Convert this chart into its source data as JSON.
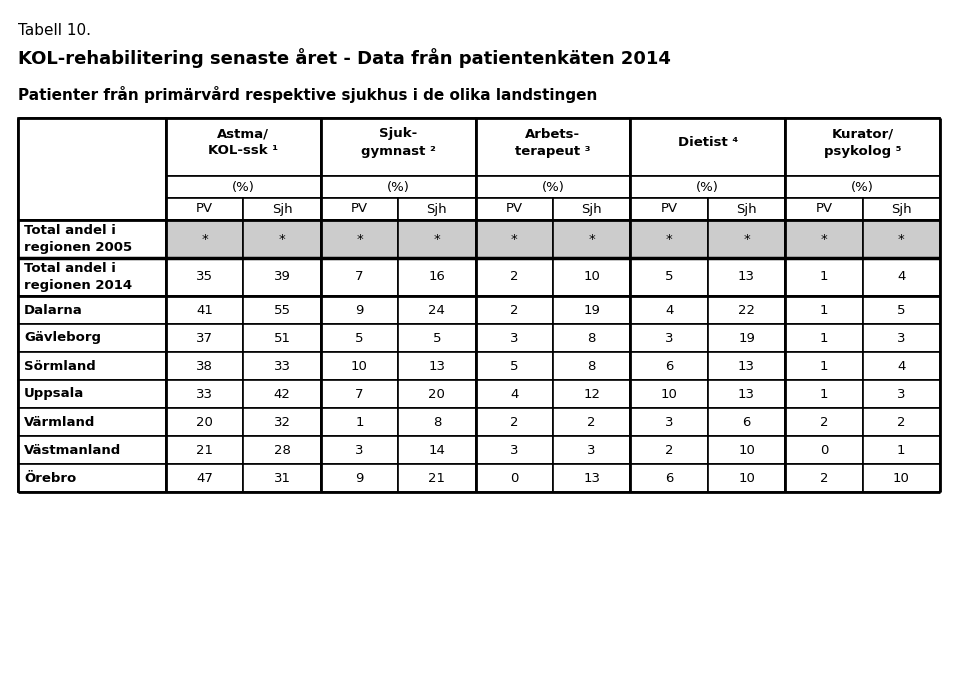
{
  "title_small": "Tabell 10.",
  "title_main": "KOL-rehabilitering senaste året - Data från patientenkäten 2014",
  "title_sub": "Patienter från primärvård respektive sjukhus i de olika landstingen",
  "col_groups": [
    {
      "label": "Astma/\nKOL-ssk ¹",
      "span": 2
    },
    {
      "label": "Sjuk-\ngymnast ²",
      "span": 2
    },
    {
      "label": "Arbets-\nterapeut ³",
      "span": 2
    },
    {
      "label": "Dietist ⁴",
      "span": 2
    },
    {
      "label": "Kurator/\npsykolog ⁵",
      "span": 2
    }
  ],
  "col_pct_label": "(%)",
  "col_sub_headers": [
    "PV",
    "Sjh",
    "PV",
    "Sjh",
    "PV",
    "Sjh",
    "PV",
    "Sjh",
    "PV",
    "Sjh"
  ],
  "row_headers_bold": [
    "Total andel i\nregionen 2005",
    "Total andel i\nregionen 2014"
  ],
  "row_headers_normal": [
    "Dalarna",
    "Gävleborg",
    "Sörmland",
    "Uppsala",
    "Värmland",
    "Västmanland",
    "Örebro"
  ],
  "row_2005": [
    "*",
    "*",
    "*",
    "*",
    "*",
    "*",
    "*",
    "*",
    "*",
    "*"
  ],
  "row_2014": [
    "35",
    "39",
    "7",
    "16",
    "2",
    "10",
    "5",
    "13",
    "1",
    "4"
  ],
  "rows_data": [
    [
      "41",
      "55",
      "9",
      "24",
      "2",
      "19",
      "4",
      "22",
      "1",
      "5"
    ],
    [
      "37",
      "51",
      "5",
      "5",
      "3",
      "8",
      "3",
      "19",
      "1",
      "3"
    ],
    [
      "38",
      "33",
      "10",
      "13",
      "5",
      "8",
      "6",
      "13",
      "1",
      "4"
    ],
    [
      "33",
      "42",
      "7",
      "20",
      "4",
      "12",
      "10",
      "13",
      "1",
      "3"
    ],
    [
      "20",
      "32",
      "1",
      "8",
      "2",
      "2",
      "3",
      "6",
      "2",
      "2"
    ],
    [
      "21",
      "28",
      "3",
      "14",
      "3",
      "3",
      "2",
      "10",
      "0",
      "1"
    ],
    [
      "47",
      "31",
      "9",
      "21",
      "0",
      "13",
      "6",
      "10",
      "2",
      "10"
    ]
  ],
  "gray_color": "#cccccc",
  "white_color": "#ffffff",
  "black_color": "#000000",
  "border_color": "#000000",
  "background_color": "#ffffff"
}
